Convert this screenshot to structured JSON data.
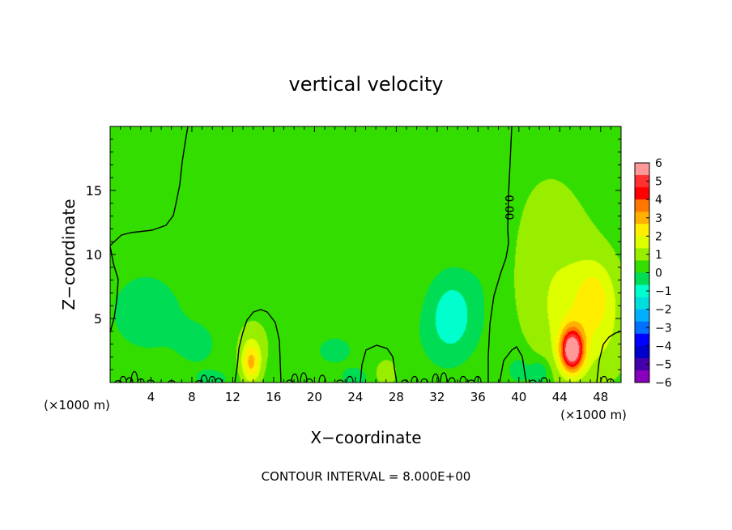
{
  "chart_data": {
    "type": "heatmap",
    "title": "vertical velocity",
    "xlabel": "X−coordinate",
    "ylabel": "Z−coordinate",
    "x_unit_left": "(×1000 m)",
    "x_unit_right": "(×1000 m)",
    "footer": "CONTOUR INTERVAL = 8.000E+00",
    "contour_label": "0.00",
    "xlim": [
      0,
      50
    ],
    "ylim": [
      0,
      20
    ],
    "x_ticks": [
      4,
      8,
      12,
      16,
      20,
      24,
      28,
      32,
      36,
      40,
      44,
      48
    ],
    "y_ticks": [
      5,
      10,
      15
    ],
    "colorbar": {
      "range": [
        -6,
        6
      ],
      "ticks": [
        "6",
        "5",
        "4",
        "3",
        "2",
        "1",
        "0",
        "−1",
        "−2",
        "−3",
        "−4",
        "−5",
        "−6"
      ],
      "colors": [
        "#ff9999",
        "#ff3030",
        "#ff0000",
        "#ff7700",
        "#ffb000",
        "#ffee00",
        "#ddff00",
        "#99ee00",
        "#33dd00",
        "#00dd55",
        "#00ffcc",
        "#00dddd",
        "#00b0ff",
        "#0070ff",
        "#0000ff",
        "#0000cc",
        "#4400aa",
        "#8800bb"
      ]
    },
    "features": [
      {
        "x": 45.2,
        "z": 2.5,
        "sx": 1.1,
        "sz": 1.6,
        "w": 5.5
      },
      {
        "x": 46.5,
        "z": 4.0,
        "sx": 4.0,
        "sz": 4.0,
        "w": 1.2
      },
      {
        "x": 44.0,
        "z": 8.0,
        "sx": 5.0,
        "sz": 5.0,
        "w": 0.7
      },
      {
        "x": 47.5,
        "z": 7.0,
        "sx": 1.8,
        "sz": 2.5,
        "w": 1.0
      },
      {
        "x": 43.0,
        "z": 14.0,
        "sx": 4.0,
        "sz": 5.0,
        "w": 0.3
      },
      {
        "x": 13.8,
        "z": 1.5,
        "sx": 0.9,
        "sz": 1.5,
        "w": 2.2
      },
      {
        "x": 14.0,
        "z": 3.0,
        "sx": 1.8,
        "sz": 2.2,
        "w": 0.6
      },
      {
        "x": 27.0,
        "z": 0.8,
        "sx": 1.0,
        "sz": 1.0,
        "w": 1.0
      },
      {
        "x": 33.5,
        "z": 5.5,
        "sx": 2.2,
        "sz": 3.0,
        "w": -1.3
      },
      {
        "x": 32.5,
        "z": 3.5,
        "sx": 3.0,
        "sz": 3.0,
        "w": -0.4
      },
      {
        "x": 3.5,
        "z": 5.5,
        "sx": 3.2,
        "sz": 2.8,
        "w": -0.9
      },
      {
        "x": 8.5,
        "z": 3.0,
        "sx": 2.5,
        "sz": 2.2,
        "w": -0.5
      },
      {
        "x": 22.0,
        "z": 2.5,
        "sx": 4.0,
        "sz": 2.5,
        "w": -0.4
      },
      {
        "x": 40.0,
        "z": 1.0,
        "sx": 1.2,
        "sz": 1.2,
        "w": -0.7
      },
      {
        "x": 42.0,
        "z": 0.8,
        "sx": 0.9,
        "sz": 0.9,
        "w": -1.2
      },
      {
        "x": 37.0,
        "z": 9.0,
        "sx": 2.0,
        "sz": 6.0,
        "w": -0.3
      },
      {
        "x": 24.0,
        "z": 0.3,
        "sx": 1.0,
        "sz": 0.6,
        "w": -0.8
      },
      {
        "x": 10.0,
        "z": 0.3,
        "sx": 1.5,
        "sz": 0.6,
        "w": -0.7
      }
    ]
  }
}
